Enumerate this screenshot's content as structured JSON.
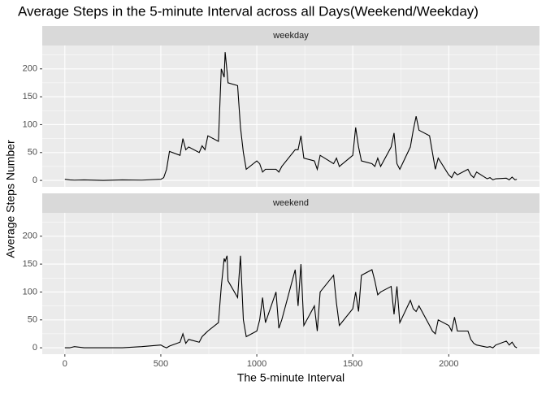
{
  "chart_data": [
    {
      "type": "line",
      "title": "Average Steps in the 5-minute Interval across all Days(Weekend/Weekday)",
      "xlabel": "The 5-minute Interval",
      "ylabel": "Average Steps Number",
      "panel": "weekday",
      "color": "#000000",
      "grid": true,
      "x": [
        0,
        25,
        50,
        100,
        200,
        300,
        400,
        500,
        515,
        530,
        545,
        600,
        615,
        630,
        645,
        700,
        715,
        730,
        745,
        800,
        815,
        830,
        835,
        845,
        850,
        900,
        915,
        930,
        945,
        1000,
        1015,
        1030,
        1045,
        1100,
        1115,
        1130,
        1200,
        1215,
        1230,
        1245,
        1300,
        1315,
        1330,
        1400,
        1415,
        1430,
        1500,
        1515,
        1530,
        1545,
        1600,
        1615,
        1630,
        1645,
        1700,
        1715,
        1730,
        1745,
        1800,
        1815,
        1830,
        1845,
        1900,
        1915,
        1930,
        1945,
        2000,
        2015,
        2030,
        2045,
        2100,
        2115,
        2130,
        2145,
        2200,
        2215,
        2230,
        2245,
        2300,
        2315,
        2330,
        2345,
        2355
      ],
      "values": [
        2,
        1,
        0.5,
        1,
        0,
        1,
        0.5,
        2,
        5,
        20,
        52,
        45,
        75,
        55,
        60,
        50,
        62,
        55,
        80,
        70,
        200,
        185,
        230,
        195,
        175,
        170,
        95,
        50,
        20,
        35,
        30,
        15,
        20,
        20,
        15,
        25,
        55,
        55,
        80,
        40,
        35,
        20,
        45,
        30,
        40,
        25,
        45,
        95,
        60,
        35,
        30,
        25,
        40,
        25,
        60,
        85,
        30,
        20,
        60,
        90,
        115,
        90,
        80,
        50,
        20,
        40,
        10,
        5,
        15,
        10,
        20,
        10,
        5,
        15,
        3,
        5,
        1,
        3,
        4,
        1,
        6,
        1,
        2
      ],
      "xlim": [
        -117.75,
        2472.75
      ],
      "xticks": [
        0,
        500,
        1000,
        1500,
        2000
      ],
      "x_minor_ticks": [
        250,
        750,
        1250,
        1750,
        2250
      ],
      "ylim": [
        -11.5,
        241.9
      ],
      "yticks": [
        0,
        50,
        100,
        150,
        200
      ],
      "y_minor_ticks": [
        25,
        75,
        125,
        175,
        225
      ]
    },
    {
      "type": "line",
      "panel": "weekend",
      "color": "#000000",
      "grid": true,
      "x": [
        0,
        25,
        50,
        100,
        200,
        300,
        400,
        500,
        515,
        530,
        545,
        600,
        615,
        630,
        645,
        700,
        715,
        730,
        745,
        800,
        815,
        830,
        835,
        845,
        850,
        900,
        915,
        930,
        945,
        1000,
        1015,
        1030,
        1045,
        1100,
        1115,
        1130,
        1200,
        1215,
        1230,
        1245,
        1300,
        1315,
        1330,
        1400,
        1415,
        1430,
        1500,
        1515,
        1530,
        1545,
        1600,
        1615,
        1630,
        1645,
        1700,
        1715,
        1730,
        1745,
        1800,
        1815,
        1830,
        1845,
        1900,
        1915,
        1930,
        1945,
        2000,
        2015,
        2030,
        2045,
        2100,
        2115,
        2130,
        2145,
        2200,
        2215,
        2230,
        2245,
        2300,
        2315,
        2330,
        2345,
        2355
      ],
      "values": [
        0,
        0,
        2,
        0,
        0,
        0,
        2,
        5,
        2,
        0,
        3,
        10,
        25,
        8,
        15,
        10,
        20,
        25,
        30,
        45,
        110,
        160,
        155,
        165,
        120,
        90,
        165,
        50,
        20,
        30,
        50,
        90,
        45,
        100,
        35,
        50,
        140,
        75,
        150,
        40,
        75,
        30,
        100,
        130,
        80,
        40,
        70,
        100,
        65,
        130,
        140,
        120,
        95,
        100,
        110,
        60,
        110,
        45,
        85,
        70,
        65,
        75,
        40,
        30,
        25,
        50,
        40,
        30,
        55,
        30,
        30,
        15,
        8,
        5,
        1,
        2,
        0,
        5,
        12,
        5,
        10,
        2,
        0
      ],
      "xlim": [
        -117.75,
        2472.75
      ],
      "xticks": [
        0,
        500,
        1000,
        1500,
        2000
      ],
      "x_minor_ticks": [
        250,
        750,
        1250,
        1750,
        2250
      ],
      "ylim": [
        -11.5,
        241.9
      ],
      "yticks": [
        0,
        50,
        100,
        150,
        200
      ],
      "y_minor_ticks": [
        25,
        75,
        125,
        175,
        225
      ]
    }
  ]
}
